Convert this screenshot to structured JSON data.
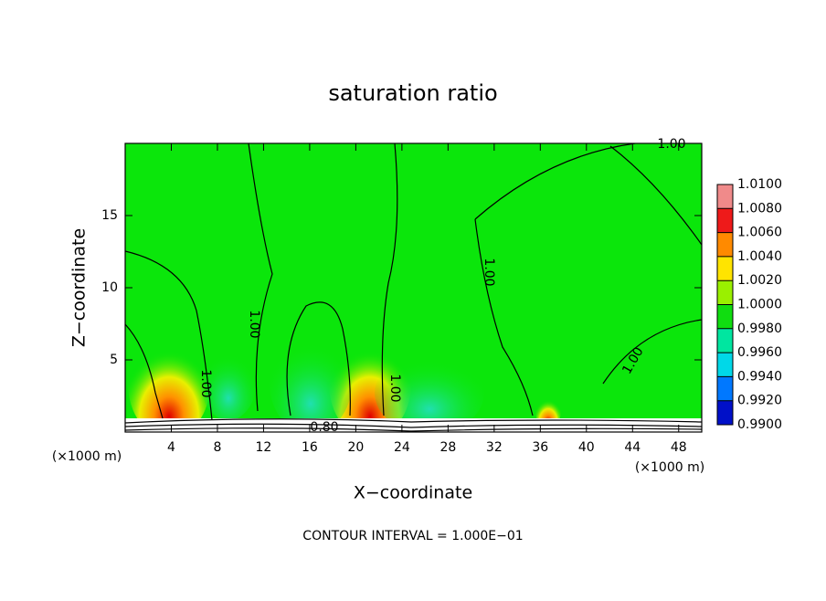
{
  "chart_data": {
    "type": "contour",
    "title": "saturation ratio",
    "x_label": "X−coordinate",
    "y_label": "Z−coordinate",
    "x_unit_left": "(×1000 m)",
    "x_unit_right": "(×1000 m)",
    "footer": "CONTOUR INTERVAL = 1.000E−01",
    "xlim": [
      0,
      50
    ],
    "ylim": [
      0,
      20
    ],
    "xticks": [
      4,
      8,
      12,
      16,
      20,
      24,
      28,
      32,
      36,
      40,
      44,
      48
    ],
    "yticks": [
      5,
      10,
      15
    ],
    "field_color": "#0be60b",
    "contour_labels": [
      "1.00",
      "1.00",
      "1.00",
      "1.00",
      "1.00",
      "1.00",
      "0.80"
    ],
    "colorbar": {
      "ticks": [
        {
          "value": 1.01,
          "label": "1.0100"
        },
        {
          "value": 1.008,
          "label": "1.0080"
        },
        {
          "value": 1.006,
          "label": "1.0060"
        },
        {
          "value": 1.004,
          "label": "1.0040"
        },
        {
          "value": 1.002,
          "label": "1.0020"
        },
        {
          "value": 1.0,
          "label": "1.0000"
        },
        {
          "value": 0.998,
          "label": "0.9980"
        },
        {
          "value": 0.996,
          "label": "0.9960"
        },
        {
          "value": 0.994,
          "label": "0.9940"
        },
        {
          "value": 0.992,
          "label": "0.9920"
        },
        {
          "value": 0.99,
          "label": "0.9900"
        }
      ],
      "colors": [
        "#f08a8a",
        "#ee1a1a",
        "#ff8a00",
        "#ffe400",
        "#9af000",
        "#10dd10",
        "#00e6a0",
        "#00d8e8",
        "#0078ff",
        "#0010c8"
      ]
    }
  }
}
